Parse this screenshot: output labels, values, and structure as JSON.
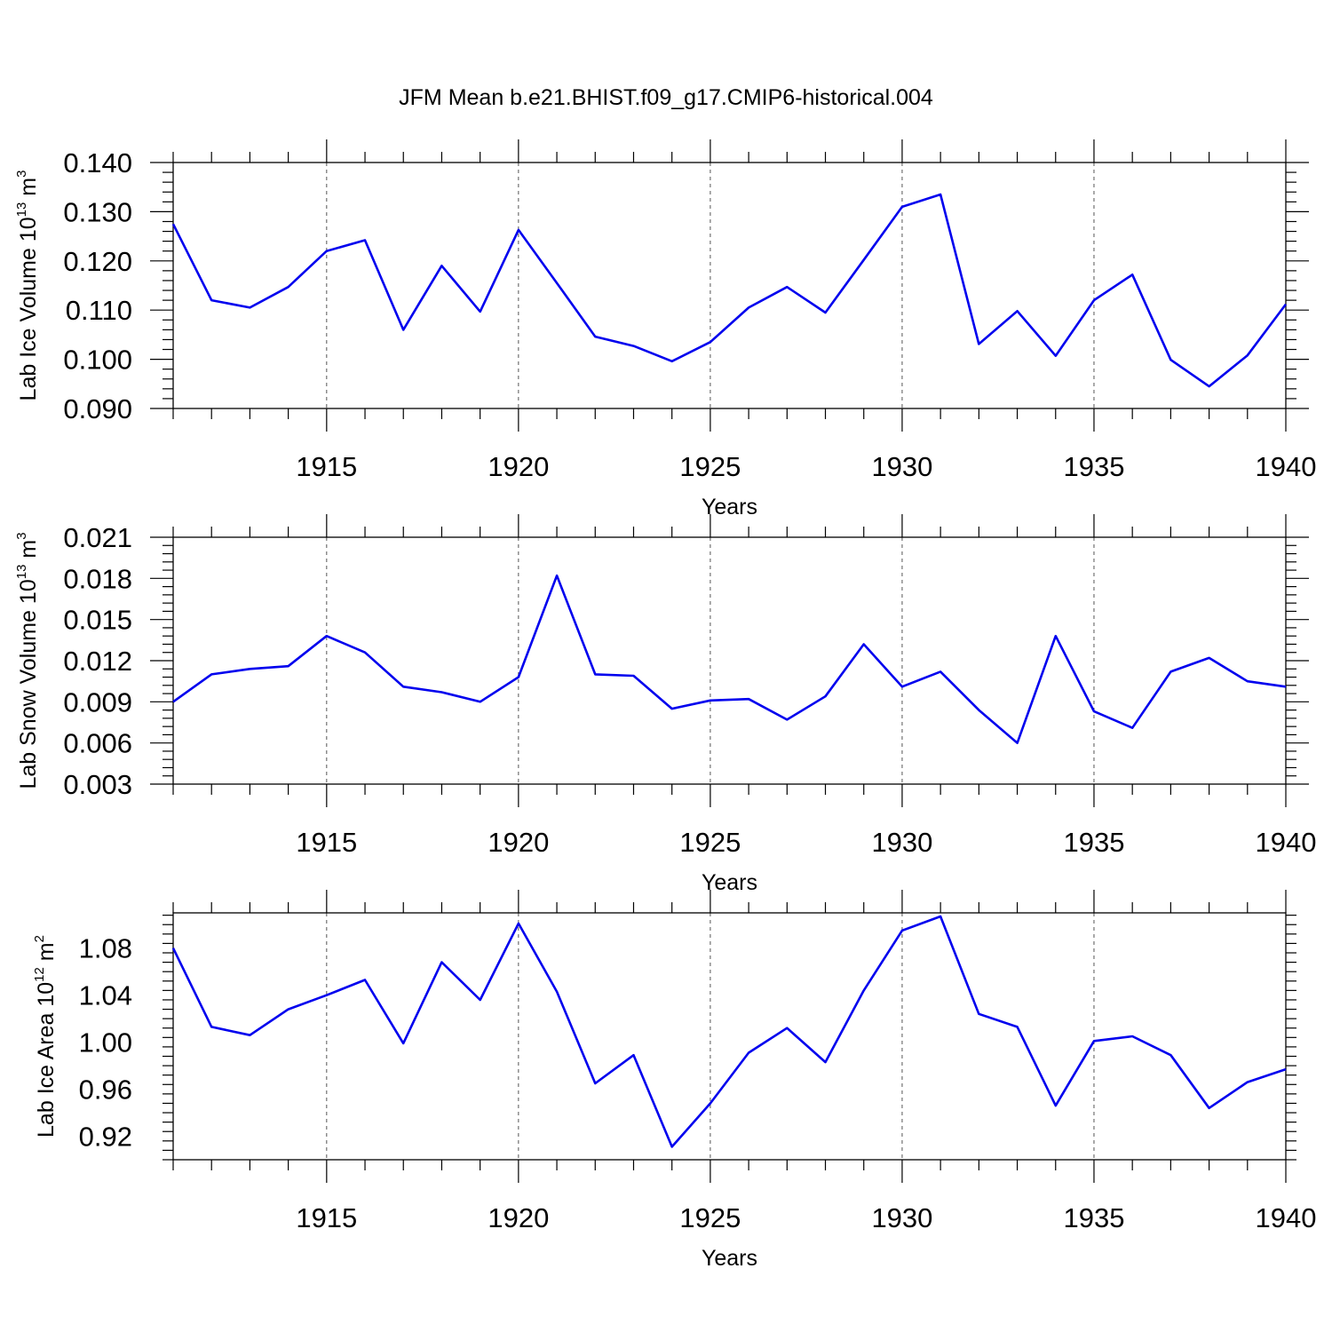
{
  "figure": {
    "title": "JFM Mean b.e21.BHIST.f09_g17.CMIP6-historical.004",
    "line_color": "#0000ee"
  },
  "chart_data": [
    {
      "type": "line",
      "ylabel_prefix": "Lab Ice Volume 10",
      "ylabel_exp": "13",
      "ylabel_unit": " m",
      "ylabel_unit_exp": "3",
      "xlabel": "Years",
      "xlim": [
        1911,
        1940
      ],
      "ylim": [
        0.09,
        0.14
      ],
      "yticks": [
        0.09,
        0.1,
        0.11,
        0.12,
        0.13,
        0.14
      ],
      "ytick_labels": [
        "0.090",
        "0.100",
        "0.110",
        "0.120",
        "0.130",
        "0.140"
      ],
      "xticks": [
        1915,
        1920,
        1925,
        1930,
        1935,
        1940
      ],
      "xtick_labels": [
        "1915",
        "1920",
        "1925",
        "1930",
        "1935",
        "1940"
      ],
      "grid": "vertical dashed at labeled years",
      "x": [
        1911,
        1912,
        1913,
        1914,
        1915,
        1916,
        1917,
        1918,
        1919,
        1920,
        1921,
        1922,
        1923,
        1924,
        1925,
        1926,
        1927,
        1928,
        1929,
        1930,
        1931,
        1932,
        1933,
        1934,
        1935,
        1936,
        1937,
        1938,
        1939,
        1940
      ],
      "series": [
        {
          "values": [
            0.1275,
            0.112,
            0.1105,
            0.1147,
            0.122,
            0.1242,
            0.106,
            0.119,
            0.1097,
            0.1263,
            0.1155,
            0.1046,
            0.1027,
            0.0996,
            0.1035,
            0.1105,
            0.1147,
            0.1095,
            0.1202,
            0.131,
            0.1335,
            0.1031,
            0.1098,
            0.1007,
            0.112,
            0.1172,
            0.0999,
            0.0945,
            0.1008,
            0.1112
          ]
        }
      ]
    },
    {
      "type": "line",
      "ylabel_prefix": "Lab Snow Volume 10",
      "ylabel_exp": "13",
      "ylabel_unit": " m",
      "ylabel_unit_exp": "3",
      "xlabel": "Years",
      "xlim": [
        1911,
        1940
      ],
      "ylim": [
        0.003,
        0.021
      ],
      "yticks": [
        0.003,
        0.006,
        0.009,
        0.012,
        0.015,
        0.018,
        0.021
      ],
      "ytick_labels": [
        "0.003",
        "0.006",
        "0.009",
        "0.012",
        "0.015",
        "0.018",
        "0.021"
      ],
      "xticks": [
        1915,
        1920,
        1925,
        1930,
        1935,
        1940
      ],
      "xtick_labels": [
        "1915",
        "1920",
        "1925",
        "1930",
        "1935",
        "1940"
      ],
      "grid": "vertical dashed at labeled years",
      "x": [
        1911,
        1912,
        1913,
        1914,
        1915,
        1916,
        1917,
        1918,
        1919,
        1920,
        1921,
        1922,
        1923,
        1924,
        1925,
        1926,
        1927,
        1928,
        1929,
        1930,
        1931,
        1932,
        1933,
        1934,
        1935,
        1936,
        1937,
        1938,
        1939,
        1940
      ],
      "series": [
        {
          "values": [
            0.009,
            0.011,
            0.0114,
            0.0116,
            0.0138,
            0.0126,
            0.0101,
            0.0097,
            0.009,
            0.0108,
            0.0182,
            0.011,
            0.0109,
            0.0085,
            0.0091,
            0.0092,
            0.0077,
            0.0094,
            0.0132,
            0.0101,
            0.0112,
            0.0084,
            0.006,
            0.0138,
            0.0083,
            0.0071,
            0.0112,
            0.0122,
            0.0105,
            0.0101
          ]
        }
      ]
    },
    {
      "type": "line",
      "ylabel_prefix": "Lab Ice Area 10",
      "ylabel_exp": "12",
      "ylabel_unit": " m",
      "ylabel_unit_exp": "2",
      "xlabel": "Years",
      "xlim": [
        1911,
        1940
      ],
      "ylim": [
        0.9,
        1.11
      ],
      "yticks": [
        0.92,
        0.96,
        1.0,
        1.04,
        1.08
      ],
      "ytick_labels": [
        "0.92",
        "0.96",
        "1.00",
        "1.04",
        "1.08"
      ],
      "xticks": [
        1915,
        1920,
        1925,
        1930,
        1935,
        1940
      ],
      "xtick_labels": [
        "1915",
        "1920",
        "1925",
        "1930",
        "1935",
        "1940"
      ],
      "grid": "vertical dashed at labeled years",
      "x": [
        1911,
        1912,
        1913,
        1914,
        1915,
        1916,
        1917,
        1918,
        1919,
        1920,
        1921,
        1922,
        1923,
        1924,
        1925,
        1926,
        1927,
        1928,
        1929,
        1930,
        1931,
        1932,
        1933,
        1934,
        1935,
        1936,
        1937,
        1938,
        1939,
        1940
      ],
      "series": [
        {
          "values": [
            1.08,
            1.013,
            1.006,
            1.028,
            1.04,
            1.053,
            0.999,
            1.068,
            1.036,
            1.101,
            1.043,
            0.965,
            0.989,
            0.911,
            0.948,
            0.991,
            1.012,
            0.983,
            1.044,
            1.095,
            1.107,
            1.024,
            1.013,
            0.946,
            1.001,
            1.005,
            0.989,
            0.944,
            0.966,
            0.977
          ]
        }
      ]
    }
  ]
}
